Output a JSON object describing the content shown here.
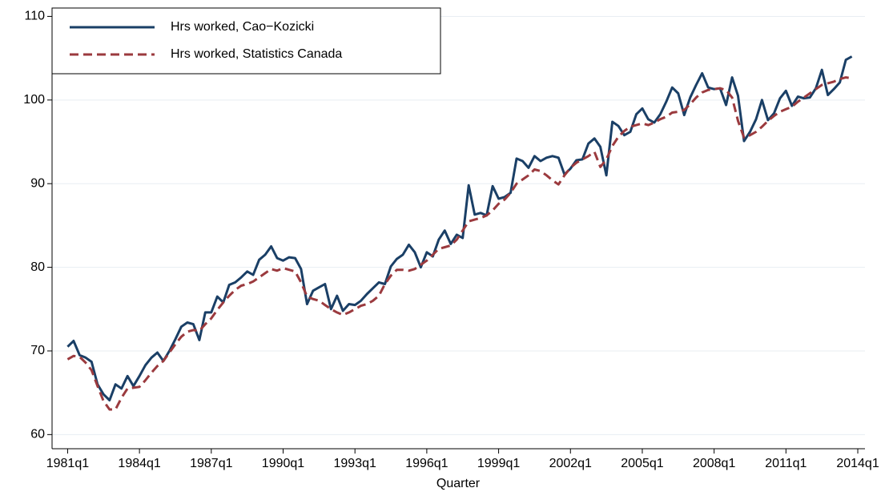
{
  "chart_data": {
    "type": "line",
    "x_label": "Quarter",
    "x": [
      1981,
      1981.25,
      1981.5,
      1981.75,
      1982,
      1982.25,
      1982.5,
      1982.75,
      1983,
      1983.25,
      1983.5,
      1983.75,
      1984,
      1984.25,
      1984.5,
      1984.75,
      1985,
      1985.25,
      1985.5,
      1985.75,
      1986,
      1986.25,
      1986.5,
      1986.75,
      1987,
      1987.25,
      1987.5,
      1987.75,
      1988,
      1988.25,
      1988.5,
      1988.75,
      1989,
      1989.25,
      1989.5,
      1989.75,
      1990,
      1990.25,
      1990.5,
      1990.75,
      1991,
      1991.25,
      1991.5,
      1991.75,
      1992,
      1992.25,
      1992.5,
      1992.75,
      1993,
      1993.25,
      1993.5,
      1993.75,
      1994,
      1994.25,
      1994.5,
      1994.75,
      1995,
      1995.25,
      1995.5,
      1995.75,
      1996,
      1996.25,
      1996.5,
      1996.75,
      1997,
      1997.25,
      1997.5,
      1997.75,
      1998,
      1998.25,
      1998.5,
      1998.75,
      1999,
      1999.25,
      1999.5,
      1999.75,
      2000,
      2000.25,
      2000.5,
      2000.75,
      2001,
      2001.25,
      2001.5,
      2001.75,
      2002,
      2002.25,
      2002.5,
      2002.75,
      2003,
      2003.25,
      2003.5,
      2003.75,
      2004,
      2004.25,
      2004.5,
      2004.75,
      2005,
      2005.25,
      2005.5,
      2005.75,
      2006,
      2006.25,
      2006.5,
      2006.75,
      2007,
      2007.25,
      2007.5,
      2007.75,
      2008,
      2008.25,
      2008.5,
      2008.75,
      2009,
      2009.25,
      2009.5,
      2009.75,
      2010,
      2010.25,
      2010.5,
      2010.75,
      2011,
      2011.25,
      2011.5,
      2011.75,
      2012,
      2012.25,
      2012.5,
      2012.75,
      2013,
      2013.25,
      2013.5,
      2013.75
    ],
    "series": [
      {
        "name": "Hrs worked, Cao−Kozicki",
        "color": "#1a3f66",
        "dash": "solid",
        "values": [
          70.5,
          71.2,
          69.5,
          69.2,
          68.7,
          66.0,
          64.8,
          64.1,
          66.0,
          65.5,
          67.0,
          65.8,
          67.0,
          68.3,
          69.2,
          69.8,
          68.8,
          70.0,
          71.4,
          72.9,
          73.4,
          73.2,
          71.3,
          74.6,
          74.6,
          76.5,
          75.8,
          77.9,
          78.2,
          78.8,
          79.5,
          79.1,
          80.9,
          81.5,
          82.5,
          81.1,
          80.8,
          81.2,
          81.1,
          79.8,
          75.6,
          77.2,
          77.6,
          78.0,
          75.0,
          76.6,
          74.8,
          75.6,
          75.5,
          76.0,
          76.8,
          77.5,
          78.2,
          78.0,
          80.1,
          81.0,
          81.5,
          82.7,
          81.8,
          80.0,
          81.8,
          81.3,
          83.3,
          84.4,
          82.8,
          83.9,
          83.5,
          89.8,
          86.3,
          86.5,
          86.2,
          89.7,
          88.2,
          88.4,
          88.9,
          93.0,
          92.7,
          91.9,
          93.3,
          92.7,
          93.1,
          93.3,
          93.1,
          91.1,
          91.8,
          92.8,
          92.9,
          94.8,
          95.4,
          94.4,
          91.0,
          97.4,
          96.9,
          95.8,
          96.2,
          98.3,
          99.0,
          97.7,
          97.3,
          98.3,
          99.8,
          101.5,
          100.8,
          98.2,
          100.3,
          101.8,
          103.2,
          101.5,
          101.3,
          101.4,
          99.4,
          102.7,
          100.5,
          95.1,
          96.2,
          97.7,
          100.0,
          97.6,
          98.4,
          100.2,
          101.1,
          99.3,
          100.4,
          100.2,
          100.3,
          101.4,
          103.6,
          100.6,
          101.3,
          102.1,
          104.8,
          105.2
        ]
      },
      {
        "name": "Hrs worked, Statistics Canada",
        "color": "#9b3a3e",
        "dash": "dashed",
        "values": [
          69.0,
          69.4,
          69.3,
          68.6,
          67.7,
          65.8,
          64.0,
          63.0,
          63.0,
          64.4,
          65.5,
          65.6,
          65.7,
          66.5,
          67.4,
          68.2,
          68.8,
          69.8,
          70.8,
          71.7,
          72.3,
          72.5,
          72.4,
          73.2,
          73.9,
          74.9,
          75.8,
          76.6,
          77.3,
          77.8,
          78.0,
          78.3,
          78.8,
          79.3,
          79.8,
          79.6,
          79.9,
          79.7,
          79.5,
          78.2,
          76.5,
          76.2,
          76.0,
          75.5,
          75.0,
          74.6,
          74.3,
          74.6,
          75.0,
          75.4,
          75.6,
          76.0,
          76.6,
          78.0,
          79.0,
          79.7,
          79.7,
          79.6,
          79.8,
          80.3,
          80.8,
          81.5,
          82.2,
          82.4,
          82.6,
          83.3,
          84.4,
          85.5,
          85.7,
          85.9,
          86.2,
          86.8,
          87.6,
          88.1,
          88.9,
          90.0,
          90.5,
          91.0,
          91.7,
          91.5,
          91.0,
          90.4,
          89.9,
          91.0,
          91.9,
          92.5,
          92.9,
          93.3,
          93.8,
          92.0,
          92.9,
          94.5,
          95.6,
          96.3,
          96.8,
          97.0,
          97.2,
          97.0,
          97.3,
          97.7,
          98.0,
          98.5,
          98.6,
          98.8,
          99.5,
          100.3,
          100.9,
          101.2,
          101.3,
          101.4,
          101.2,
          100.3,
          97.5,
          95.5,
          95.8,
          96.2,
          96.8,
          97.5,
          98.1,
          98.6,
          98.9,
          99.2,
          99.8,
          100.3,
          100.8,
          101.3,
          101.8,
          102.0,
          102.2,
          102.5,
          102.7,
          102.6
        ]
      }
    ],
    "xlim": [
      1980.35,
      2014.3
    ],
    "xticks": [
      {
        "value": 1981,
        "label": "1981q1"
      },
      {
        "value": 1984,
        "label": "1984q1"
      },
      {
        "value": 1987,
        "label": "1987q1"
      },
      {
        "value": 1990,
        "label": "1990q1"
      },
      {
        "value": 1993,
        "label": "1993q1"
      },
      {
        "value": 1996,
        "label": "1996q1"
      },
      {
        "value": 1999,
        "label": "1999q1"
      },
      {
        "value": 2002,
        "label": "2002q1"
      },
      {
        "value": 2005,
        "label": "2005q1"
      },
      {
        "value": 2008,
        "label": "2008q1"
      },
      {
        "value": 2011,
        "label": "2011q1"
      },
      {
        "value": 2014,
        "label": "2014q1"
      }
    ],
    "ylim": [
      58.5,
      111
    ],
    "yticks": [
      60,
      70,
      80,
      90,
      100,
      110
    ],
    "grid": true,
    "legend": "top-left"
  }
}
